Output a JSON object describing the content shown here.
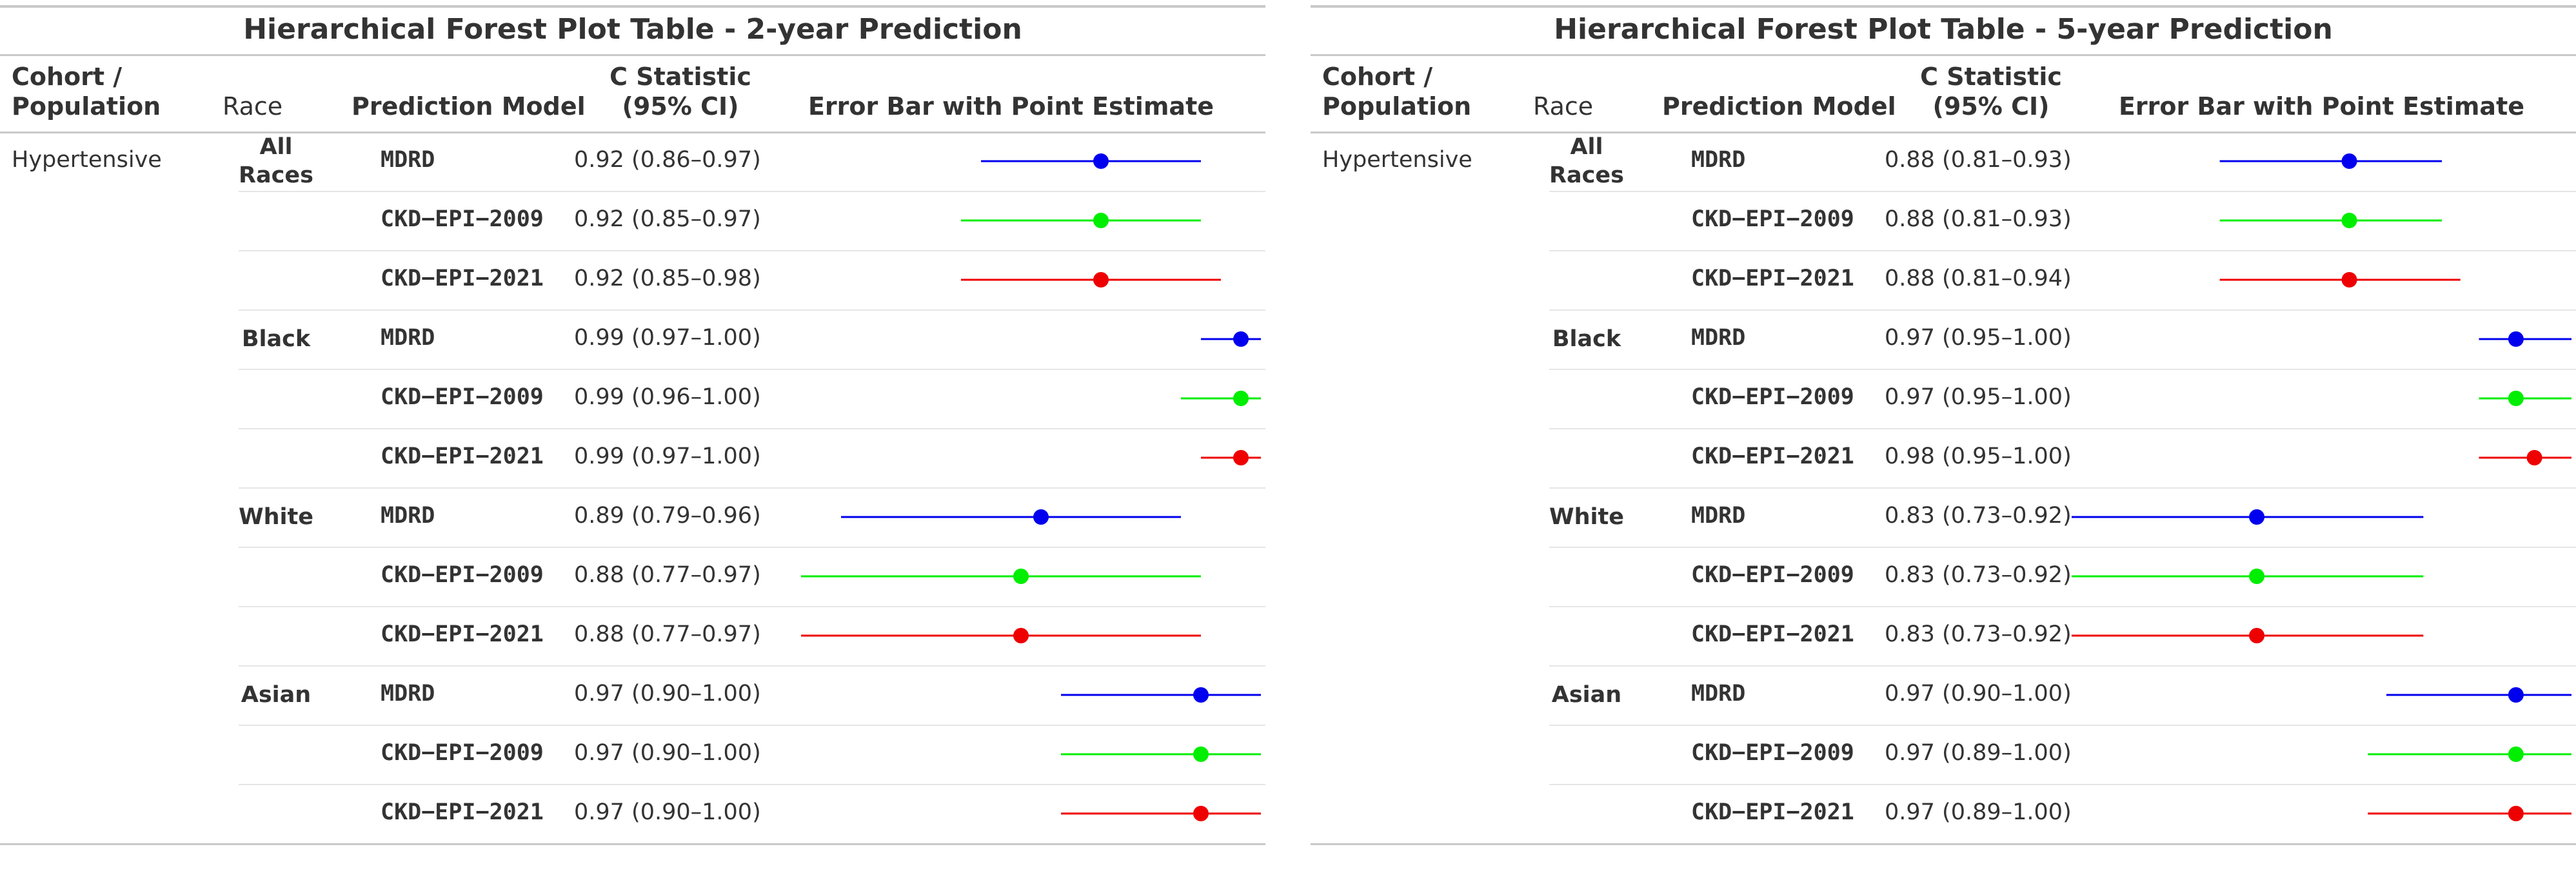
{
  "chart_data": [
    {
      "type": "table",
      "title": "Hierarchical Forest Plot Table - 2-year Prediction",
      "headers": {
        "cohort": "Cohort / Population",
        "race": "Race",
        "model": "Prediction Model",
        "cstat": "C Statistic (95% CI)",
        "errorbar": "Error Bar with Point Estimate"
      },
      "cohort_label": "Hypertensive",
      "x_range": [
        0.75,
        1.0
      ],
      "rows": [
        {
          "race": "All Races",
          "model": "MDRD",
          "est": 0.92,
          "lo": 0.86,
          "hi": 0.97,
          "ci": "0.92 (0.86–0.97)",
          "color": "#0000ee"
        },
        {
          "race": "",
          "model": "CKD−EPI−2009",
          "est": 0.92,
          "lo": 0.85,
          "hi": 0.97,
          "ci": "0.92 (0.85–0.97)",
          "color": "#00ee00"
        },
        {
          "race": "",
          "model": "CKD−EPI−2021",
          "est": 0.92,
          "lo": 0.85,
          "hi": 0.98,
          "ci": "0.92 (0.85–0.98)",
          "color": "#ee0000"
        },
        {
          "race": "Black",
          "model": "MDRD",
          "est": 0.99,
          "lo": 0.97,
          "hi": 1.0,
          "ci": "0.99 (0.97–1.00)",
          "color": "#0000ee"
        },
        {
          "race": "",
          "model": "CKD−EPI−2009",
          "est": 0.99,
          "lo": 0.96,
          "hi": 1.0,
          "ci": "0.99 (0.96–1.00)",
          "color": "#00ee00"
        },
        {
          "race": "",
          "model": "CKD−EPI−2021",
          "est": 0.99,
          "lo": 0.97,
          "hi": 1.0,
          "ci": "0.99 (0.97–1.00)",
          "color": "#ee0000"
        },
        {
          "race": "White",
          "model": "MDRD",
          "est": 0.89,
          "lo": 0.79,
          "hi": 0.96,
          "ci": "0.89 (0.79–0.96)",
          "color": "#0000ee"
        },
        {
          "race": "",
          "model": "CKD−EPI−2009",
          "est": 0.88,
          "lo": 0.77,
          "hi": 0.97,
          "ci": "0.88 (0.77–0.97)",
          "color": "#00ee00"
        },
        {
          "race": "",
          "model": "CKD−EPI−2021",
          "est": 0.88,
          "lo": 0.77,
          "hi": 0.97,
          "ci": "0.88 (0.77–0.97)",
          "color": "#ee0000"
        },
        {
          "race": "Asian",
          "model": "MDRD",
          "est": 0.97,
          "lo": 0.9,
          "hi": 1.0,
          "ci": "0.97 (0.90–1.00)",
          "color": "#0000ee"
        },
        {
          "race": "",
          "model": "CKD−EPI−2009",
          "est": 0.97,
          "lo": 0.9,
          "hi": 1.0,
          "ci": "0.97 (0.90–1.00)",
          "color": "#00ee00"
        },
        {
          "race": "",
          "model": "CKD−EPI−2021",
          "est": 0.97,
          "lo": 0.9,
          "hi": 1.0,
          "ci": "0.97 (0.90–1.00)",
          "color": "#ee0000"
        }
      ]
    },
    {
      "type": "table",
      "title": "Hierarchical Forest Plot Table - 5-year Prediction",
      "headers": {
        "cohort": "Cohort / Population",
        "race": "Race",
        "model": "Prediction Model",
        "cstat": "C Statistic (95% CI)",
        "errorbar": "Error Bar with Point Estimate"
      },
      "cohort_label": "Hypertensive",
      "x_range": [
        0.73,
        1.0
      ],
      "rows": [
        {
          "race": "All Races",
          "model": "MDRD",
          "est": 0.88,
          "lo": 0.81,
          "hi": 0.93,
          "ci": "0.88 (0.81–0.93)",
          "color": "#0000ee"
        },
        {
          "race": "",
          "model": "CKD−EPI−2009",
          "est": 0.88,
          "lo": 0.81,
          "hi": 0.93,
          "ci": "0.88 (0.81–0.93)",
          "color": "#00ee00"
        },
        {
          "race": "",
          "model": "CKD−EPI−2021",
          "est": 0.88,
          "lo": 0.81,
          "hi": 0.94,
          "ci": "0.88 (0.81–0.94)",
          "color": "#ee0000"
        },
        {
          "race": "Black",
          "model": "MDRD",
          "est": 0.97,
          "lo": 0.95,
          "hi": 1.0,
          "ci": "0.97 (0.95–1.00)",
          "color": "#0000ee"
        },
        {
          "race": "",
          "model": "CKD−EPI−2009",
          "est": 0.97,
          "lo": 0.95,
          "hi": 1.0,
          "ci": "0.97 (0.95–1.00)",
          "color": "#00ee00"
        },
        {
          "race": "",
          "model": "CKD−EPI−2021",
          "est": 0.98,
          "lo": 0.95,
          "hi": 1.0,
          "ci": "0.98 (0.95–1.00)",
          "color": "#ee0000"
        },
        {
          "race": "White",
          "model": "MDRD",
          "est": 0.83,
          "lo": 0.73,
          "hi": 0.92,
          "ci": "0.83 (0.73–0.92)",
          "color": "#0000ee"
        },
        {
          "race": "",
          "model": "CKD−EPI−2009",
          "est": 0.83,
          "lo": 0.73,
          "hi": 0.92,
          "ci": "0.83 (0.73–0.92)",
          "color": "#00ee00"
        },
        {
          "race": "",
          "model": "CKD−EPI−2021",
          "est": 0.83,
          "lo": 0.73,
          "hi": 0.92,
          "ci": "0.83 (0.73–0.92)",
          "color": "#ee0000"
        },
        {
          "race": "Asian",
          "model": "MDRD",
          "est": 0.97,
          "lo": 0.9,
          "hi": 1.0,
          "ci": "0.97 (0.90–1.00)",
          "color": "#0000ee"
        },
        {
          "race": "",
          "model": "CKD−EPI−2009",
          "est": 0.97,
          "lo": 0.89,
          "hi": 1.0,
          "ci": "0.97 (0.89–1.00)",
          "color": "#00ee00"
        },
        {
          "race": "",
          "model": "CKD−EPI−2021",
          "est": 0.97,
          "lo": 0.89,
          "hi": 1.0,
          "ci": "0.97 (0.89–1.00)",
          "color": "#ee0000"
        }
      ]
    }
  ]
}
